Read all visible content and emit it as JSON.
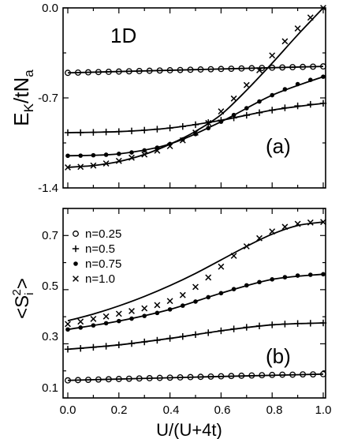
{
  "chart_data": [
    {
      "panel": "a",
      "type": "line",
      "panel_label": "(a)",
      "annotation": "1D",
      "ylabel_main": "E",
      "ylabel_sub1": "K",
      "ylabel_mid": "/tN",
      "ylabel_sub2": "a",
      "xlim": [
        0,
        1
      ],
      "ylim": [
        -1.4,
        0
      ],
      "yticks": [
        "0.0",
        "-0.7",
        "-1.4"
      ],
      "series": [
        {
          "name": "n=0.25",
          "marker": "circle",
          "points": [
            [
              0,
              -0.505
            ],
            [
              0.04,
              -0.503
            ],
            [
              0.08,
              -0.501
            ],
            [
              0.12,
              -0.499
            ],
            [
              0.16,
              -0.497
            ],
            [
              0.2,
              -0.495
            ],
            [
              0.24,
              -0.493
            ],
            [
              0.28,
              -0.491
            ],
            [
              0.32,
              -0.489
            ],
            [
              0.36,
              -0.487
            ],
            [
              0.4,
              -0.485
            ],
            [
              0.44,
              -0.483
            ],
            [
              0.48,
              -0.481
            ],
            [
              0.52,
              -0.479
            ],
            [
              0.56,
              -0.477
            ],
            [
              0.6,
              -0.475
            ],
            [
              0.64,
              -0.473
            ],
            [
              0.68,
              -0.471
            ],
            [
              0.72,
              -0.469
            ],
            [
              0.76,
              -0.467
            ],
            [
              0.8,
              -0.465
            ],
            [
              0.84,
              -0.463
            ],
            [
              0.88,
              -0.461
            ],
            [
              0.92,
              -0.459
            ],
            [
              0.96,
              -0.457
            ],
            [
              1.0,
              -0.455
            ]
          ],
          "curve": [
            [
              0,
              -0.505
            ],
            [
              0.5,
              -0.48
            ],
            [
              1.0,
              -0.455
            ]
          ]
        },
        {
          "name": "n=0.5",
          "marker": "plus",
          "points": [
            [
              0,
              -0.97
            ],
            [
              0.05,
              -0.97
            ],
            [
              0.1,
              -0.968
            ],
            [
              0.15,
              -0.965
            ],
            [
              0.2,
              -0.962
            ],
            [
              0.25,
              -0.957
            ],
            [
              0.3,
              -0.951
            ],
            [
              0.35,
              -0.943
            ],
            [
              0.4,
              -0.934
            ],
            [
              0.45,
              -0.922
            ],
            [
              0.5,
              -0.908
            ],
            [
              0.55,
              -0.892
            ],
            [
              0.6,
              -0.874
            ],
            [
              0.65,
              -0.855
            ],
            [
              0.7,
              -0.835
            ],
            [
              0.75,
              -0.815
            ],
            [
              0.8,
              -0.795
            ],
            [
              0.85,
              -0.777
            ],
            [
              0.9,
              -0.762
            ],
            [
              0.95,
              -0.75
            ],
            [
              1.0,
              -0.742
            ]
          ],
          "curve": [
            [
              0,
              -0.97
            ],
            [
              0.2,
              -0.962
            ],
            [
              0.4,
              -0.934
            ],
            [
              0.6,
              -0.874
            ],
            [
              0.8,
              -0.795
            ],
            [
              1.0,
              -0.742
            ]
          ]
        },
        {
          "name": "n=0.75",
          "marker": "dot",
          "points": [
            [
              0,
              -1.15
            ],
            [
              0.05,
              -1.149
            ],
            [
              0.1,
              -1.146
            ],
            [
              0.15,
              -1.142
            ],
            [
              0.2,
              -1.135
            ],
            [
              0.25,
              -1.124
            ],
            [
              0.3,
              -1.108
            ],
            [
              0.35,
              -1.087
            ],
            [
              0.4,
              -1.058
            ],
            [
              0.45,
              -1.023
            ],
            [
              0.5,
              -0.981
            ],
            [
              0.55,
              -0.935
            ],
            [
              0.6,
              -0.885
            ],
            [
              0.65,
              -0.833
            ],
            [
              0.7,
              -0.78
            ],
            [
              0.75,
              -0.728
            ],
            [
              0.8,
              -0.679
            ],
            [
              0.85,
              -0.633
            ],
            [
              0.9,
              -0.593
            ],
            [
              0.95,
              -0.56
            ],
            [
              1.0,
              -0.535
            ]
          ],
          "curve": [
            [
              0,
              -1.15
            ],
            [
              0.2,
              -1.135
            ],
            [
              0.4,
              -1.058
            ],
            [
              0.6,
              -0.885
            ],
            [
              0.8,
              -0.679
            ],
            [
              1.0,
              -0.535
            ]
          ]
        },
        {
          "name": "n=1.0",
          "marker": "cross",
          "points": [
            [
              0,
              -1.24
            ],
            [
              0.05,
              -1.236
            ],
            [
              0.1,
              -1.226
            ],
            [
              0.15,
              -1.21
            ],
            [
              0.2,
              -1.19
            ],
            [
              0.25,
              -1.165
            ],
            [
              0.3,
              -1.14
            ],
            [
              0.35,
              -1.11
            ],
            [
              0.4,
              -1.075
            ],
            [
              0.45,
              -1.03
            ],
            [
              0.5,
              -0.97
            ],
            [
              0.55,
              -0.895
            ],
            [
              0.6,
              -0.805
            ],
            [
              0.65,
              -0.705
            ],
            [
              0.7,
              -0.6
            ],
            [
              0.75,
              -0.485
            ],
            [
              0.8,
              -0.37
            ],
            [
              0.85,
              -0.26
            ],
            [
              0.9,
              -0.16
            ],
            [
              0.95,
              -0.075
            ],
            [
              1.0,
              0.0
            ]
          ],
          "curve": [
            [
              0,
              -1.24
            ],
            [
              0.1,
              -1.226
            ],
            [
              0.2,
              -1.195
            ],
            [
              0.3,
              -1.14
            ],
            [
              0.4,
              -1.06
            ],
            [
              0.5,
              -0.96
            ],
            [
              0.6,
              -0.83
            ],
            [
              0.7,
              -0.64
            ],
            [
              0.8,
              -0.43
            ],
            [
              0.9,
              -0.21
            ],
            [
              1.0,
              0.0
            ]
          ]
        }
      ]
    },
    {
      "panel": "b",
      "type": "line",
      "panel_label": "(b)",
      "ylabel_pre": "<S",
      "ylabel_sub": "i",
      "ylabel_sup": "2",
      "ylabel_post": ">",
      "xlabel": "U/(U+4t)",
      "xlim": [
        0,
        1
      ],
      "ylim": [
        0.1,
        0.8
      ],
      "xticks": [
        "0.0",
        "0.2",
        "0.4",
        "0.6",
        "0.8",
        "1.0"
      ],
      "yticks": [
        "0.7",
        "0.5",
        "0.3",
        "0.1"
      ],
      "legend": [
        {
          "label": "n=0.25",
          "marker": "circle"
        },
        {
          "label": "n=0.5",
          "marker": "plus"
        },
        {
          "label": "n=0.75",
          "marker": "dot"
        },
        {
          "label": "n=1.0",
          "marker": "cross"
        }
      ],
      "series": [
        {
          "name": "n=0.25",
          "marker": "circle",
          "points": [
            [
              0,
              0.165
            ],
            [
              0.04,
              0.166
            ],
            [
              0.08,
              0.167
            ],
            [
              0.12,
              0.168
            ],
            [
              0.16,
              0.169
            ],
            [
              0.2,
              0.17
            ],
            [
              0.24,
              0.171
            ],
            [
              0.28,
              0.172
            ],
            [
              0.32,
              0.173
            ],
            [
              0.36,
              0.174
            ],
            [
              0.4,
              0.175
            ],
            [
              0.44,
              0.176
            ],
            [
              0.48,
              0.177
            ],
            [
              0.52,
              0.178
            ],
            [
              0.56,
              0.179
            ],
            [
              0.6,
              0.18
            ],
            [
              0.64,
              0.181
            ],
            [
              0.68,
              0.182
            ],
            [
              0.72,
              0.183
            ],
            [
              0.76,
              0.184
            ],
            [
              0.8,
              0.185
            ],
            [
              0.84,
              0.186
            ],
            [
              0.88,
              0.186
            ],
            [
              0.92,
              0.187
            ],
            [
              0.96,
              0.187
            ],
            [
              1.0,
              0.188
            ]
          ],
          "curve": [
            [
              0,
              0.165
            ],
            [
              0.5,
              0.177
            ],
            [
              1.0,
              0.188
            ]
          ]
        },
        {
          "name": "n=0.5",
          "marker": "plus",
          "points": [
            [
              0,
              0.28
            ],
            [
              0.05,
              0.283
            ],
            [
              0.1,
              0.287
            ],
            [
              0.15,
              0.291
            ],
            [
              0.2,
              0.296
            ],
            [
              0.25,
              0.301
            ],
            [
              0.3,
              0.307
            ],
            [
              0.35,
              0.313
            ],
            [
              0.4,
              0.32
            ],
            [
              0.45,
              0.327
            ],
            [
              0.5,
              0.334
            ],
            [
              0.55,
              0.341
            ],
            [
              0.6,
              0.348
            ],
            [
              0.65,
              0.355
            ],
            [
              0.7,
              0.361
            ],
            [
              0.75,
              0.366
            ],
            [
              0.8,
              0.37
            ],
            [
              0.85,
              0.373
            ],
            [
              0.9,
              0.375
            ],
            [
              0.95,
              0.376
            ],
            [
              1.0,
              0.377
            ]
          ],
          "curve": [
            [
              0,
              0.28
            ],
            [
              0.2,
              0.296
            ],
            [
              0.4,
              0.32
            ],
            [
              0.6,
              0.348
            ],
            [
              0.8,
              0.37
            ],
            [
              1.0,
              0.377
            ]
          ]
        },
        {
          "name": "n=0.75",
          "marker": "dot",
          "points": [
            [
              0,
              0.353
            ],
            [
              0.05,
              0.36
            ],
            [
              0.1,
              0.368
            ],
            [
              0.15,
              0.376
            ],
            [
              0.2,
              0.384
            ],
            [
              0.25,
              0.393
            ],
            [
              0.3,
              0.403
            ],
            [
              0.35,
              0.414
            ],
            [
              0.4,
              0.427
            ],
            [
              0.45,
              0.441
            ],
            [
              0.5,
              0.456
            ],
            [
              0.55,
              0.472
            ],
            [
              0.6,
              0.487
            ],
            [
              0.65,
              0.502
            ],
            [
              0.7,
              0.516
            ],
            [
              0.75,
              0.528
            ],
            [
              0.8,
              0.538
            ],
            [
              0.85,
              0.546
            ],
            [
              0.9,
              0.552
            ],
            [
              0.95,
              0.555
            ],
            [
              1.0,
              0.557
            ]
          ],
          "curve": [
            [
              0,
              0.353
            ],
            [
              0.2,
              0.384
            ],
            [
              0.4,
              0.427
            ],
            [
              0.6,
              0.487
            ],
            [
              0.8,
              0.538
            ],
            [
              1.0,
              0.557
            ]
          ]
        },
        {
          "name": "n=1.0",
          "marker": "cross",
          "points": [
            [
              0,
              0.373
            ],
            [
              0.05,
              0.382
            ],
            [
              0.1,
              0.392
            ],
            [
              0.15,
              0.401
            ],
            [
              0.2,
              0.411
            ],
            [
              0.25,
              0.421
            ],
            [
              0.3,
              0.431
            ],
            [
              0.35,
              0.443
            ],
            [
              0.4,
              0.458
            ],
            [
              0.45,
              0.48
            ],
            [
              0.5,
              0.51
            ],
            [
              0.55,
              0.545
            ],
            [
              0.6,
              0.585
            ],
            [
              0.65,
              0.625
            ],
            [
              0.7,
              0.66
            ],
            [
              0.75,
              0.69
            ],
            [
              0.8,
              0.715
            ],
            [
              0.85,
              0.732
            ],
            [
              0.9,
              0.743
            ],
            [
              0.95,
              0.748
            ],
            [
              1.0,
              0.75
            ]
          ],
          "curve": [
            [
              0,
              0.385
            ],
            [
              0.1,
              0.41
            ],
            [
              0.2,
              0.44
            ],
            [
              0.3,
              0.475
            ],
            [
              0.4,
              0.515
            ],
            [
              0.5,
              0.56
            ],
            [
              0.6,
              0.61
            ],
            [
              0.7,
              0.66
            ],
            [
              0.8,
              0.705
            ],
            [
              0.9,
              0.737
            ],
            [
              1.0,
              0.75
            ]
          ]
        }
      ]
    }
  ]
}
